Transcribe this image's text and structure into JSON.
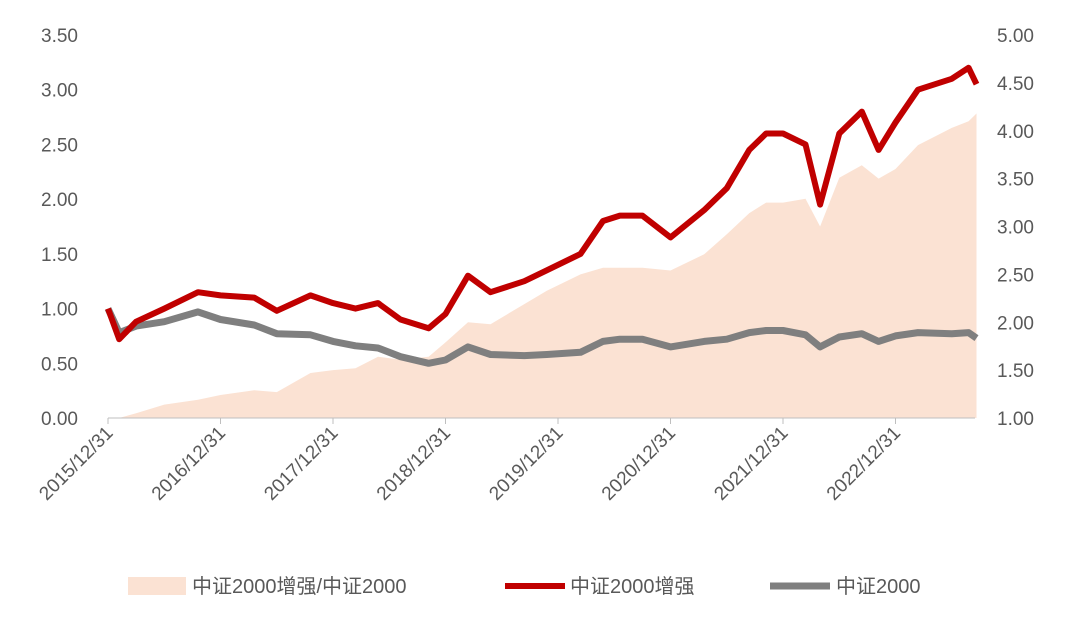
{
  "chart_data": {
    "type": "line",
    "title": "",
    "x_ticks": [
      "2015/12/31",
      "2016/12/31",
      "2017/12/31",
      "2018/12/31",
      "2019/12/31",
      "2020/12/31",
      "2021/12/31",
      "2022/12/31"
    ],
    "x_tick_values": [
      2016.0,
      2017.0,
      2018.0,
      2019.0,
      2020.0,
      2021.0,
      2022.0,
      2023.0
    ],
    "xlim": [
      2016.0,
      2023.7
    ],
    "y_left": {
      "ticks": [
        "0.00",
        "0.50",
        "1.00",
        "1.50",
        "2.00",
        "2.50",
        "3.00",
        "3.50"
      ],
      "ylim": [
        0,
        3.5
      ]
    },
    "y_right": {
      "ticks": [
        "1.00",
        "1.50",
        "2.00",
        "2.50",
        "3.00",
        "3.50",
        "4.00",
        "4.50",
        "5.00"
      ],
      "ylim": [
        1,
        5
      ]
    },
    "grid": false,
    "legend_position": "bottom",
    "x": [
      2016.0,
      2016.1,
      2016.25,
      2016.5,
      2016.8,
      2017.0,
      2017.3,
      2017.5,
      2017.8,
      2018.0,
      2018.2,
      2018.4,
      2018.6,
      2018.85,
      2019.0,
      2019.2,
      2019.4,
      2019.7,
      2019.9,
      2020.2,
      2020.4,
      2020.55,
      2020.75,
      2021.0,
      2021.3,
      2021.5,
      2021.7,
      2021.85,
      2022.0,
      2022.2,
      2022.33,
      2022.5,
      2022.7,
      2022.85,
      2023.0,
      2023.2,
      2023.5,
      2023.65,
      2023.72
    ],
    "series": [
      {
        "name": "中证2000增强/中证2000",
        "kind": "area",
        "axis": "right",
        "color": "#FBE2D3",
        "values": [
          1.0,
          1.0,
          1.05,
          1.14,
          1.19,
          1.24,
          1.29,
          1.27,
          1.47,
          1.5,
          1.52,
          1.64,
          1.61,
          1.64,
          1.79,
          2.0,
          1.98,
          2.19,
          2.33,
          2.5,
          2.57,
          2.57,
          2.57,
          2.54,
          2.71,
          2.92,
          3.14,
          3.25,
          3.25,
          3.29,
          3.0,
          3.51,
          3.64,
          3.5,
          3.6,
          3.85,
          4.03,
          4.1,
          4.18
        ]
      },
      {
        "name": "中证2000增强",
        "kind": "line",
        "axis": "left",
        "color": "#C00000",
        "values": [
          1.0,
          0.72,
          0.88,
          1.0,
          1.15,
          1.12,
          1.1,
          0.98,
          1.12,
          1.05,
          1.0,
          1.05,
          0.9,
          0.82,
          0.95,
          1.3,
          1.15,
          1.25,
          1.35,
          1.5,
          1.8,
          1.85,
          1.85,
          1.65,
          1.9,
          2.1,
          2.45,
          2.6,
          2.6,
          2.5,
          1.95,
          2.6,
          2.8,
          2.45,
          2.7,
          3.0,
          3.1,
          3.2,
          3.05
        ]
      },
      {
        "name": "中证2000",
        "kind": "line",
        "axis": "left",
        "color": "#7F7F7F",
        "values": [
          1.0,
          0.78,
          0.84,
          0.88,
          0.97,
          0.9,
          0.85,
          0.77,
          0.76,
          0.7,
          0.66,
          0.64,
          0.56,
          0.5,
          0.53,
          0.65,
          0.58,
          0.57,
          0.58,
          0.6,
          0.7,
          0.72,
          0.72,
          0.65,
          0.7,
          0.72,
          0.78,
          0.8,
          0.8,
          0.76,
          0.65,
          0.74,
          0.77,
          0.7,
          0.75,
          0.78,
          0.77,
          0.78,
          0.73
        ]
      }
    ]
  }
}
